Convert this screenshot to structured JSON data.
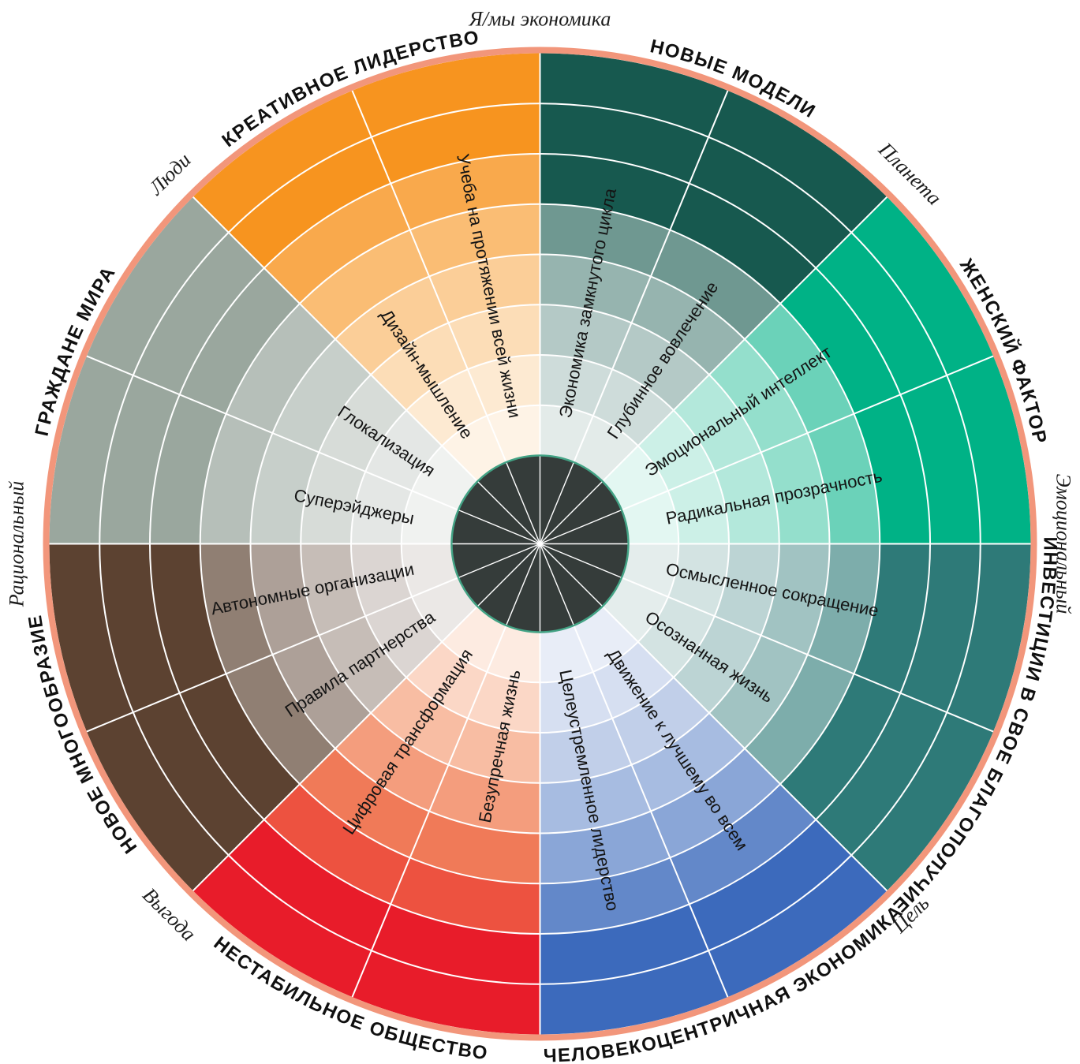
{
  "wheel": {
    "background": "#ffffff",
    "grid_color": "#ffffff",
    "outer_ring_color": "#f2967b",
    "hub_color": "#353c3a",
    "hub_ring_color": "#43a385",
    "title_color": "#101010",
    "label_color": "#141414",
    "rings": 8,
    "sectors": [
      {
        "name": "НОВЫЕ МОДЕЛИ",
        "flipped": false,
        "ring_colors": [
          "#17594f",
          "#17594f",
          "#17594f",
          "#6f9891",
          "#96b4af",
          "#b4c9c6",
          "#cedcda",
          "#e3ebe9"
        ],
        "spokes": [
          "Экономика замкнутого цикла",
          "Глубинное вовлечение"
        ]
      },
      {
        "name": "ЖЕНСКИЙ ФАКТОР",
        "flipped": false,
        "ring_colors": [
          "#00b286",
          "#00b286",
          "#00b286",
          "#6bd2b9",
          "#94dfcc",
          "#b3e8db",
          "#ccf0e7",
          "#e3f7f2"
        ],
        "spokes": [
          "Эмоциональный интеллект",
          "Радикальная прозрачность"
        ]
      },
      {
        "name": "ИНВЕСТИЦИИ В СВОЕ БЛАГОПОЛУЧИЕ",
        "flipped": false,
        "ring_colors": [
          "#2e7a78",
          "#2e7a78",
          "#2e7a78",
          "#7dadab",
          "#a1c3c2",
          "#bcd4d4",
          "#d3e3e2",
          "#e4edec"
        ],
        "spokes": [
          "Осмысленное сокращение",
          "Осознанная жизнь"
        ]
      },
      {
        "name": "ЧЕЛОВЕКОЦЕНТРИЧНАЯ ЭКОНОМИКА",
        "flipped": true,
        "ring_colors": [
          "#3c6abc",
          "#3c6abc",
          "#6388c9",
          "#8aa6d7",
          "#a7bce1",
          "#c1cfe9",
          "#d6dff1",
          "#e8edf7"
        ],
        "spokes": [
          "Движение к лучшему во всем",
          "Целеустремленное лидерство"
        ]
      },
      {
        "name": "НЕСТАБИЛЬНОЕ ОБЩЕСТВО",
        "flipped": true,
        "ring_colors": [
          "#e81c2a",
          "#e81c2a",
          "#ed5240",
          "#f07a58",
          "#f49d7d",
          "#f8bda3",
          "#fbd7c6",
          "#fdebe1"
        ],
        "spokes": [
          "Безупречная жизнь",
          "Цифровая трансформация"
        ]
      },
      {
        "name": "НОВОЕ МНОГООБРАЗИЕ",
        "flipped": false,
        "ring_colors": [
          "#5c4231",
          "#5c4231",
          "#5c4231",
          "#907f73",
          "#ada098",
          "#c6bdb7",
          "#dbd5d2",
          "#ebe8e6"
        ],
        "spokes": [
          "Правила партнерства",
          "Автономные организации"
        ]
      },
      {
        "name": "ГРАЖДАНЕ МИРА",
        "flipped": false,
        "ring_colors": [
          "#9aa79e",
          "#9aa79e",
          "#9aa79e",
          "#b6bfb9",
          "#c7cfca",
          "#d7dcd8",
          "#e4e7e5",
          "#f0f2f0"
        ],
        "spokes": [
          "Суперэйджеры",
          "Глокализация"
        ]
      },
      {
        "name": "КРЕАТИВНОЕ ЛИДЕРСТВО",
        "flipped": false,
        "ring_colors": [
          "#f7941f",
          "#f7941f",
          "#f9a94c",
          "#fabd74",
          "#fbce98",
          "#fcddb7",
          "#fdead2",
          "#fef3e6"
        ],
        "spokes": [
          "Дизайн-мышление",
          "Учеба на протяжении всей жизни"
        ]
      }
    ],
    "axis_labels": [
      {
        "text": "Я/мы экономика",
        "angle": 0
      },
      {
        "text": "Планета",
        "angle": 45
      },
      {
        "text": "Эмоциональный",
        "angle": 90
      },
      {
        "text": "Цель",
        "angle": 135
      },
      {
        "text": "Выгода",
        "angle": 225
      },
      {
        "text": "Рациональный",
        "angle": 270
      },
      {
        "text": "Люди",
        "angle": 315
      }
    ]
  }
}
